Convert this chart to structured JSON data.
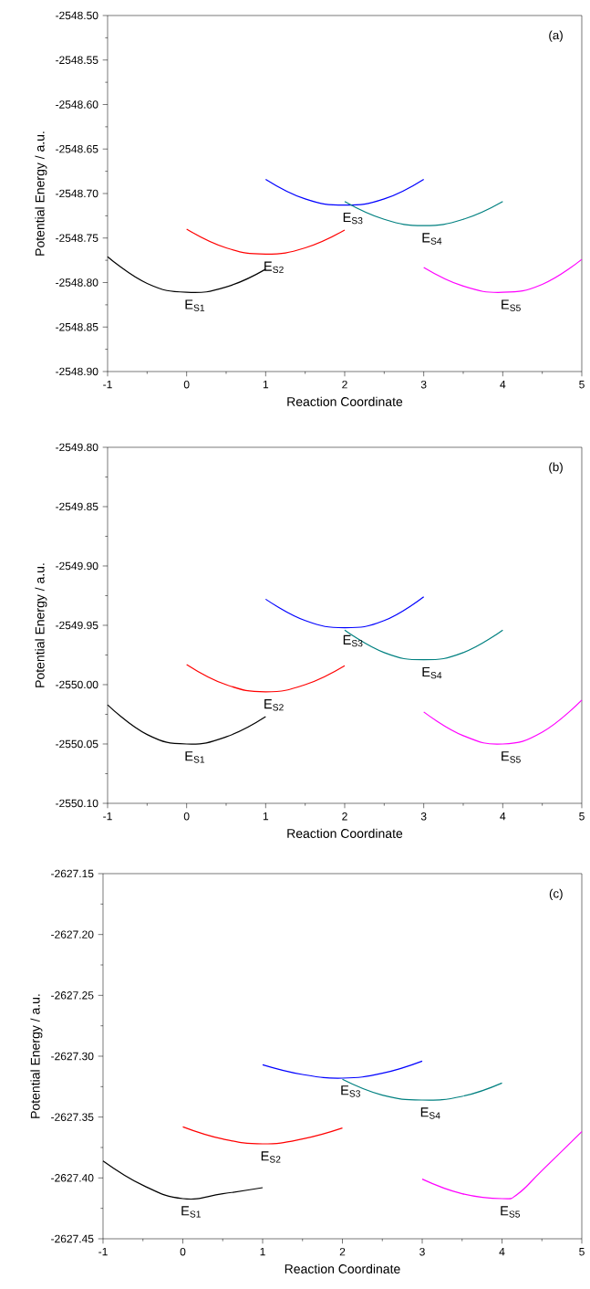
{
  "chart_data": [
    {
      "type": "line",
      "xlabel": "Reaction Coordinate",
      "ylabel": "Potential Energy / a.u.",
      "xlim": [
        -1,
        5
      ],
      "ylim": [
        -2548.9,
        -2548.5
      ],
      "xticks": [
        -1,
        0,
        1,
        2,
        3,
        4,
        5
      ],
      "yticks": [
        {
          "value": -2548.9,
          "label": "-2548.90"
        },
        {
          "value": -2548.85,
          "label": "-2548.85"
        },
        {
          "value": -2548.8,
          "label": "-2548.80"
        },
        {
          "value": -2548.75,
          "label": "-2548.75"
        },
        {
          "value": -2548.7,
          "label": "-2548.70"
        },
        {
          "value": -2548.65,
          "label": "-2548.65"
        },
        {
          "value": -2548.6,
          "label": "-2548.60"
        },
        {
          "value": -2548.55,
          "label": "-2548.55"
        },
        {
          "value": -2548.5,
          "label": "-2548.50"
        }
      ],
      "annotations": [
        "(a)",
        {
          "text": "E$_{S1}$",
          "x": 0,
          "y": -2548.811
        },
        {
          "text": "E$_{S2}$",
          "x": 1,
          "y": -2548.768
        },
        {
          "text": "E$_{S3}$",
          "x": 2,
          "y": -2548.713
        },
        {
          "text": "E$_{S4}$",
          "x": 3,
          "y": -2548.736
        },
        {
          "text": "E$_{S5}$",
          "x": 4,
          "y": -2548.811
        }
      ],
      "series": [
        {
          "color": "#000000",
          "x": [
            -1,
            -0.5,
            0,
            0.5,
            1
          ],
          "values": [
            -2548.771,
            -2548.801,
            -2548.811,
            -2548.805,
            -2548.785
          ]
        },
        {
          "color": "#ff0000",
          "x": [
            0,
            0.5,
            1,
            1.5,
            2
          ],
          "values": [
            -2548.74,
            -2548.761,
            -2548.768,
            -2548.761,
            -2548.741
          ]
        },
        {
          "color": "#0000ff",
          "x": [
            1,
            1.5,
            2,
            2.5,
            3
          ],
          "values": [
            -2548.684,
            -2548.706,
            -2548.713,
            -2548.706,
            -2548.684
          ]
        },
        {
          "color": "#008080",
          "x": [
            2,
            2.5,
            3,
            3.5,
            4
          ],
          "values": [
            -2548.709,
            -2548.729,
            -2548.736,
            -2548.729,
            -2548.709
          ]
        },
        {
          "color": "#ff00ff",
          "x": [
            3,
            3.5,
            4,
            4.5,
            5
          ],
          "values": [
            -2548.783,
            -2548.804,
            -2548.811,
            -2548.802,
            -2548.774
          ]
        }
      ]
    },
    {
      "type": "line",
      "xlabel": "Reaction Coordinate",
      "ylabel": "Potential Energy / a.u.",
      "xlim": [
        -1,
        5
      ],
      "ylim": [
        -2550.1,
        -2549.8
      ],
      "xticks": [
        -1,
        0,
        1,
        2,
        3,
        4,
        5
      ],
      "yticks": [
        {
          "value": -2550.1,
          "label": "-2550.10"
        },
        {
          "value": -2550.05,
          "label": "-2550.05"
        },
        {
          "value": -2550.0,
          "label": "-2550.00"
        },
        {
          "value": -2549.95,
          "label": "-2549.95"
        },
        {
          "value": -2549.9,
          "label": "-2549.90"
        },
        {
          "value": -2549.85,
          "label": "-2549.85"
        },
        {
          "value": -2549.8,
          "label": "-2549.80"
        }
      ],
      "annotations": [
        "(b)",
        {
          "text": "E$_{S1}$",
          "x": 0,
          "y": -2550.05
        },
        {
          "text": "E$_{S2}$",
          "x": 1,
          "y": -2550.006
        },
        {
          "text": "E$_{S3}$",
          "x": 2,
          "y": -2549.952
        },
        {
          "text": "E$_{S4}$",
          "x": 3,
          "y": -2549.979
        },
        {
          "text": "E$_{S5}$",
          "x": 4,
          "y": -2550.05
        }
      ],
      "series": [
        {
          "color": "#000000",
          "x": [
            -1,
            -0.5,
            0,
            0.5,
            1
          ],
          "values": [
            -2550.017,
            -2550.042,
            -2550.05,
            -2550.044,
            -2550.027
          ]
        },
        {
          "color": "#ff0000",
          "x": [
            0,
            0.5,
            1,
            1.5,
            2
          ],
          "values": [
            -2549.983,
            -2550.0,
            -2550.006,
            -2550.0,
            -2549.984
          ]
        },
        {
          "color": "#0000ff",
          "x": [
            1,
            1.5,
            2,
            2.5,
            3
          ],
          "values": [
            -2549.928,
            -2549.946,
            -2549.952,
            -2549.946,
            -2549.926
          ]
        },
        {
          "color": "#008080",
          "x": [
            2,
            2.5,
            3,
            3.5,
            4
          ],
          "values": [
            -2549.954,
            -2549.973,
            -2549.979,
            -2549.973,
            -2549.954
          ]
        },
        {
          "color": "#ff00ff",
          "x": [
            3,
            3.5,
            4,
            4.5,
            5
          ],
          "values": [
            -2550.023,
            -2550.043,
            -2550.05,
            -2550.04,
            -2550.013
          ]
        }
      ]
    },
    {
      "type": "line",
      "xlabel": "Reaction Coordinate",
      "ylabel": "Potential Energy / a.u.",
      "xlim": [
        -1,
        5
      ],
      "ylim": [
        -2627.45,
        -2627.15
      ],
      "xticks": [
        -1,
        0,
        1,
        2,
        3,
        4,
        5
      ],
      "yticks": [
        {
          "value": -2627.45,
          "label": "-2627.45"
        },
        {
          "value": -2627.4,
          "label": "-2627.40"
        },
        {
          "value": -2627.35,
          "label": "-2627.35"
        },
        {
          "value": -2627.3,
          "label": "-2627.30"
        },
        {
          "value": -2627.25,
          "label": "-2627.25"
        },
        {
          "value": -2627.2,
          "label": "-2627.20"
        },
        {
          "value": -2627.15,
          "label": "-2627.15"
        }
      ],
      "annotations": [
        "(c)",
        {
          "text": "E$_{S1}$",
          "x": 0,
          "y": -2627.417
        },
        {
          "text": "E$_{S2}$",
          "x": 1,
          "y": -2627.372
        },
        {
          "text": "E$_{S3}$",
          "x": 2,
          "y": -2627.318
        },
        {
          "text": "E$_{S4}$",
          "x": 3,
          "y": -2627.336
        },
        {
          "text": "E$_{S5}$",
          "x": 4,
          "y": -2627.417
        }
      ],
      "series": [
        {
          "color": "#000000",
          "x": [
            -1,
            -0.5,
            0,
            0.5,
            1
          ],
          "values": [
            -2627.386,
            -2627.406,
            -2627.417,
            -2627.413,
            -2627.408
          ]
        },
        {
          "color": "#ff0000",
          "x": [
            0,
            0.5,
            1,
            1.5,
            2
          ],
          "values": [
            -2627.358,
            -2627.368,
            -2627.372,
            -2627.368,
            -2627.359
          ]
        },
        {
          "color": "#0000ff",
          "x": [
            1,
            1.5,
            2,
            2.5,
            3
          ],
          "values": [
            -2627.307,
            -2627.315,
            -2627.318,
            -2627.314,
            -2627.304
          ]
        },
        {
          "color": "#008080",
          "x": [
            2,
            2.5,
            3,
            3.5,
            4
          ],
          "values": [
            -2627.319,
            -2627.332,
            -2627.336,
            -2627.333,
            -2627.322
          ]
        },
        {
          "color": "#ff00ff",
          "x": [
            3,
            3.5,
            4,
            4.2,
            4.5,
            5
          ],
          "values": [
            -2627.401,
            -2627.413,
            -2627.417,
            -2627.413,
            -2627.394,
            -2627.362
          ]
        }
      ]
    }
  ]
}
